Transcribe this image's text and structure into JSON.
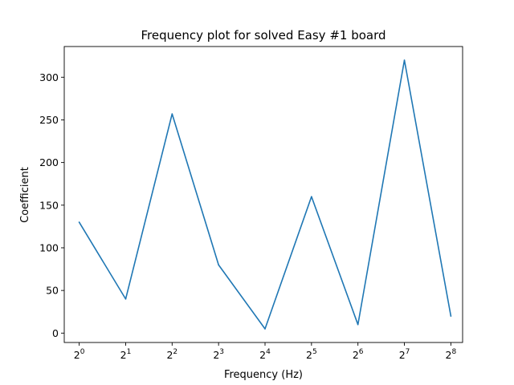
{
  "chart_data": {
    "type": "line",
    "title": "Frequency plot for solved Easy #1 board",
    "xlabel": "Frequency (Hz)",
    "ylabel": "Coefficient",
    "x_scale": "log2",
    "x": [
      1,
      2,
      4,
      8,
      16,
      32,
      64,
      128,
      256
    ],
    "x_tick_base": "2",
    "x_tick_exponents": [
      "0",
      "1",
      "2",
      "3",
      "4",
      "5",
      "6",
      "7",
      "8"
    ],
    "series": [
      {
        "color": "#1f77b4",
        "values": [
          130,
          40,
          257,
          80,
          5,
          160,
          10,
          320,
          20
        ]
      }
    ],
    "yticks": [
      0,
      50,
      100,
      150,
      200,
      250,
      300
    ],
    "ylim": [
      -11,
      336
    ],
    "xlim": [
      0.8,
      305
    ],
    "grid": false,
    "legend": false
  }
}
